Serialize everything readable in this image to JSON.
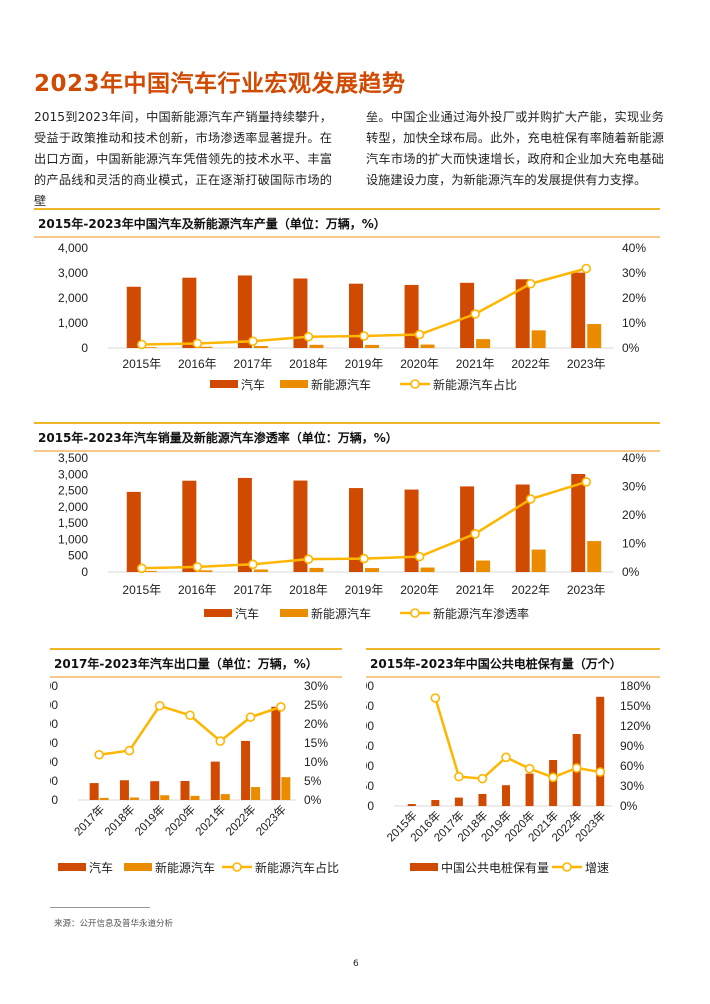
{
  "page": {
    "title": "2023年中国汽车行业宏观发展趋势",
    "paragraph_left": "2015到2023年间，中国新能源汽车产销量持续攀升，受益于政策推动和技术创新，市场渗透率显著提升。在出口方面，中国新能源汽车凭借领先的技术水平、丰富的产品线和灵活的商业模式，正在逐渐打破国际市场的壁",
    "paragraph_right": "垒。中国企业通过海外投厂或并购扩大产能，实现业务转型，加快全球布局。此外，充电桩保有率随着新能源汽车市场的扩大而快速增长，政府和企业加大充电基础设施建设力度，为新能源汽车的发展提供有力支撑。",
    "source": "来源：公开信息及普华永道分析",
    "page_number": "6"
  },
  "colors": {
    "accent": "#d04a02",
    "car_bar": "#d04a02",
    "nev_bar": "#eb8c00",
    "line": "#ffb600",
    "rule": "#f0b429"
  },
  "chart_data": [
    {
      "id": "production",
      "type": "bar",
      "title": "2015年-2023年中国汽车及新能源汽车产量（单位：万辆，%）",
      "categories": [
        "2015年",
        "2016年",
        "2017年",
        "2018年",
        "2019年",
        "2020年",
        "2021年",
        "2022年",
        "2023年"
      ],
      "series": [
        {
          "name": "汽车",
          "kind": "bar",
          "axis": "left",
          "values": [
            2450,
            2812,
            2902,
            2781,
            2572,
            2523,
            2608,
            2748,
            3016
          ]
        },
        {
          "name": "新能源汽车",
          "kind": "bar",
          "axis": "left",
          "values": [
            34,
            52,
            79,
            127,
            124,
            137,
            355,
            706,
            959
          ]
        },
        {
          "name": "新能源汽车占比",
          "kind": "line",
          "axis": "right",
          "values": [
            1.4,
            1.8,
            2.7,
            4.5,
            4.8,
            5.4,
            13.6,
            25.7,
            31.8
          ]
        }
      ],
      "yleft": {
        "min": 0,
        "max": 4000,
        "ticks": [
          "0",
          "1,000",
          "2,000",
          "3,000",
          "4,000"
        ]
      },
      "yright": {
        "min": 0,
        "max": 40,
        "ticks": [
          "0%",
          "10%",
          "20%",
          "30%",
          "40%"
        ]
      },
      "legend": "bottom"
    },
    {
      "id": "sales",
      "type": "bar",
      "title": "2015年-2023年汽车销量及新能源汽车渗透率（单位：万辆，%）",
      "categories": [
        "2015年",
        "2016年",
        "2017年",
        "2018年",
        "2019年",
        "2020年",
        "2021年",
        "2022年",
        "2023年"
      ],
      "series": [
        {
          "name": "汽车",
          "kind": "bar",
          "axis": "left",
          "values": [
            2460,
            2803,
            2888,
            2808,
            2577,
            2531,
            2628,
            2686,
            3009
          ]
        },
        {
          "name": "新能源汽车",
          "kind": "bar",
          "axis": "left",
          "values": [
            33,
            51,
            78,
            126,
            121,
            137,
            352,
            689,
            950
          ]
        },
        {
          "name": "新能源汽车渗透率",
          "kind": "line",
          "axis": "right",
          "values": [
            1.3,
            1.8,
            2.7,
            4.5,
            4.7,
            5.4,
            13.4,
            25.6,
            31.6
          ]
        }
      ],
      "yleft": {
        "min": 0,
        "max": 3500,
        "ticks": [
          "0",
          "500",
          "1,000",
          "1,500",
          "2,000",
          "2,500",
          "3,000",
          "3,500"
        ]
      },
      "yright": {
        "min": 0,
        "max": 40,
        "ticks": [
          "0%",
          "10%",
          "20%",
          "30%",
          "40%"
        ]
      },
      "legend": "bottom"
    },
    {
      "id": "export",
      "type": "bar",
      "title": "2017年-2023年汽车出口量（单位：万辆，%）",
      "categories": [
        "2017年",
        "2018年",
        "2019年",
        "2020年",
        "2021年",
        "2022年",
        "2023年"
      ],
      "series": [
        {
          "name": "汽车",
          "kind": "bar",
          "axis": "left",
          "values": [
            89,
            104,
            99,
            100,
            202,
            311,
            491
          ]
        },
        {
          "name": "新能源汽车",
          "kind": "bar",
          "axis": "left",
          "values": [
            11,
            13,
            25,
            22,
            31,
            68,
            120
          ]
        },
        {
          "name": "新能源汽车占比",
          "kind": "line",
          "axis": "right",
          "values": [
            11.9,
            13.0,
            24.8,
            22.3,
            15.5,
            21.8,
            24.5
          ]
        }
      ],
      "yleft": {
        "min": 0,
        "max": 600,
        "ticks": [
          "0",
          "100",
          "200",
          "300",
          "400",
          "500",
          "600"
        ]
      },
      "yright": {
        "min": 0,
        "max": 30,
        "ticks": [
          "0%",
          "5%",
          "10%",
          "15%",
          "20%",
          "25%",
          "30%"
        ]
      },
      "rotated_labels": true,
      "legend": "bottom"
    },
    {
      "id": "charging",
      "type": "bar",
      "title": "2015年-2023年中国公共电桩保有量（万个）",
      "categories": [
        "2015年",
        "2016年",
        "2017年",
        "2018年",
        "2019年",
        "2020年",
        "2021年",
        "2022年",
        "2023年"
      ],
      "series": [
        {
          "name": "中国公共电桩保有量",
          "kind": "bar",
          "axis": "left",
          "values": [
            5,
            15,
            21,
            30,
            52,
            81,
            115,
            180,
            273
          ]
        },
        {
          "name": "增速",
          "kind": "line",
          "axis": "right",
          "values": [
            null,
            162,
            44,
            41,
            73,
            56,
            43,
            57,
            51
          ]
        }
      ],
      "yleft": {
        "min": 0,
        "max": 300,
        "ticks": [
          "0",
          "50",
          "100",
          "150",
          "200",
          "250",
          "300"
        ]
      },
      "yright": {
        "min": 0,
        "max": 180,
        "ticks": [
          "0%",
          "30%",
          "60%",
          "90%",
          "120%",
          "150%",
          "180%"
        ]
      },
      "rotated_labels": true,
      "legend": "bottom"
    }
  ]
}
